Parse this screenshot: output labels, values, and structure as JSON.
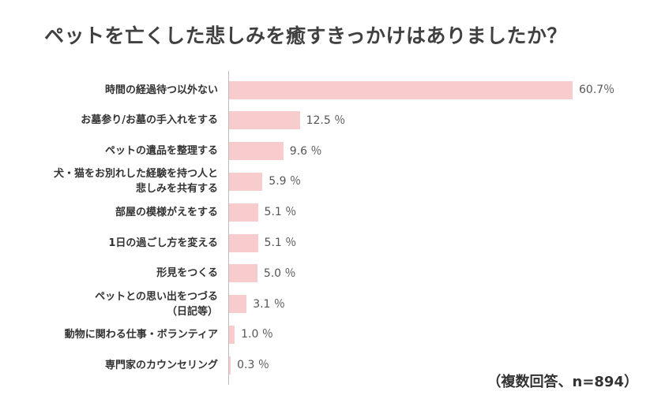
{
  "chart_data": {
    "type": "bar",
    "orientation": "horizontal",
    "title": "ペットを亡くした悲しみを癒すきっかけはありましたか？",
    "note": "（複数回答、n=894）",
    "bar_color": "#f8cccc",
    "xlim": [
      0,
      60.7
    ],
    "categories": [
      "時間の経過待つ以外ない",
      "お墓参り/お墓の手入れをする",
      "ペットの遺品を整理する",
      "犬・猫をお別れした経験を持つ人と\n悲しみを共有する",
      "部屋の模様がえをする",
      "1日の過ごし方を変える",
      "形見をつくる",
      "ペットとの思い出をつづる\n（日記等）",
      "動物に関わる仕事・ボランティア",
      "専門家のカウンセリング"
    ],
    "values": [
      60.7,
      12.5,
      9.6,
      5.9,
      5.1,
      5.1,
      5.0,
      3.1,
      1.0,
      0.3
    ],
    "value_labels": [
      "60.7％",
      "12.5 ％",
      "9.6 ％",
      "5.9 ％",
      "5.1 ％",
      "5.1 ％",
      "5.0 ％",
      "3.1 ％",
      "1.0 ％",
      "0.3 ％"
    ]
  }
}
